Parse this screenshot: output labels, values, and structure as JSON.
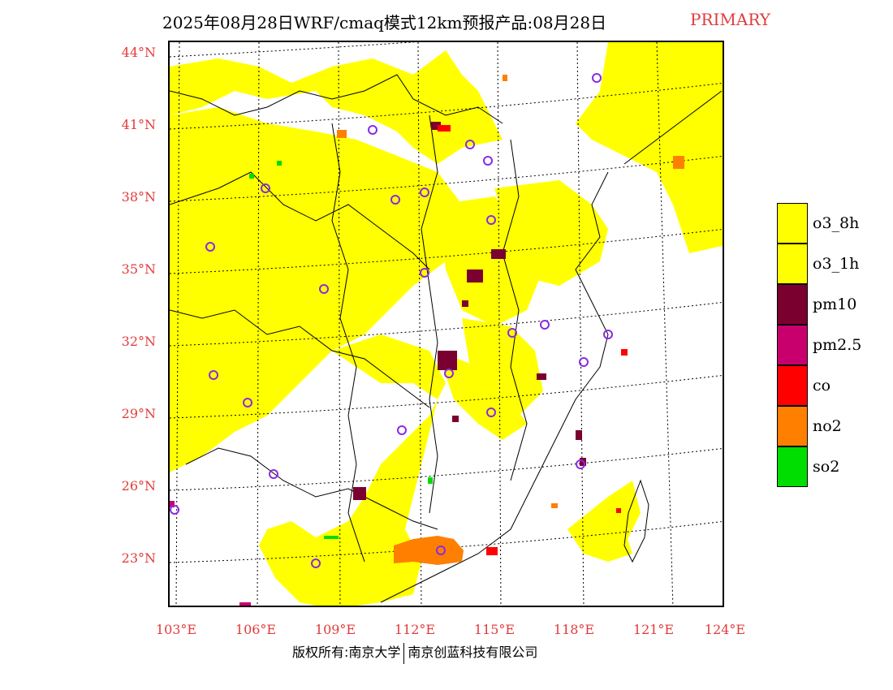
{
  "title": {
    "main": "2025年08月28日WRF/cmaq模式12km预报产品:08月28日",
    "tag": "PRIMARY"
  },
  "axes": {
    "lat_labels": [
      "44°N",
      "41°N",
      "38°N",
      "35°N",
      "32°N",
      "29°N",
      "26°N",
      "23°N"
    ],
    "lon_labels": [
      "103°E",
      "106°E",
      "109°E",
      "112°E",
      "115°E",
      "118°E",
      "121°E",
      "124°E"
    ]
  },
  "legend": {
    "items": [
      {
        "label": "o3_8h",
        "color": "#ffff00"
      },
      {
        "label": "o3_1h",
        "color": "#ffff00"
      },
      {
        "label": "pm10",
        "color": "#7a0030"
      },
      {
        "label": "pm2.5",
        "color": "#c8006e"
      },
      {
        "label": "co",
        "color": "#ff0000"
      },
      {
        "label": "no2",
        "color": "#ff7f00"
      },
      {
        "label": "so2",
        "color": "#00dd00"
      }
    ]
  },
  "colors": {
    "label_red": "#e23b3b",
    "station_marker": "#8a2be2"
  },
  "footer": {
    "left": "版权所有:南京大学",
    "right": "南京创蓝科技有限公司"
  }
}
